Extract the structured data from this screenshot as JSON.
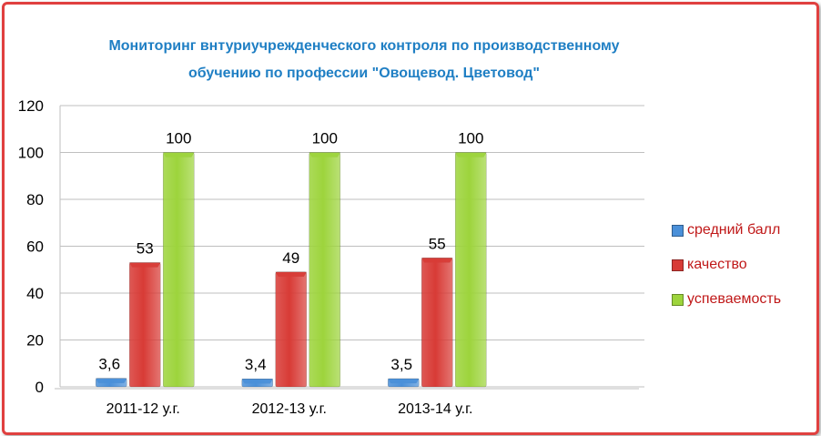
{
  "chart_data": {
    "type": "bar",
    "title_lines": [
      "Мониторинг внтуриучрежденческого контроля по производственному",
      "обучению по профессии \"Овощевод. Цветовод\""
    ],
    "categories": [
      "2011-12 у.г.",
      "2012-13 у.г.",
      "2013-14 у.г."
    ],
    "series": [
      {
        "name": "средний балл",
        "values": [
          3.6,
          3.4,
          3.5
        ],
        "labels": [
          "3,6",
          "3,4",
          "3,5"
        ],
        "color": "#4a90d9"
      },
      {
        "name": "качество",
        "values": [
          53,
          49,
          55
        ],
        "labels": [
          "53",
          "49",
          "55"
        ],
        "color": "#d83b36"
      },
      {
        "name": "успеваемость",
        "values": [
          100,
          100,
          100
        ],
        "labels": [
          "100",
          "100",
          "100"
        ],
        "color": "#9dd43c"
      }
    ],
    "ylim": [
      0,
      120
    ],
    "yticks": [
      0,
      20,
      40,
      60,
      80,
      100,
      120
    ],
    "grid": true,
    "legend_position": "right",
    "title_color": "#1f7fc4",
    "legend_text_color": "#c01818",
    "frame_color": "#e0403f"
  }
}
